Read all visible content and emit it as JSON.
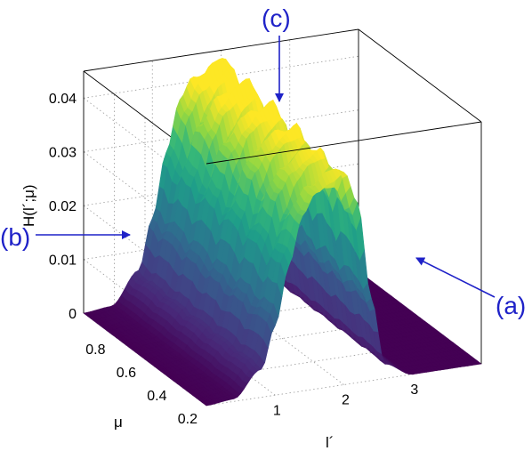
{
  "chart_data": {
    "type": "surface",
    "title": "",
    "xlabel": "l´",
    "ylabel": "μ",
    "zlabel": "H(l´;μ)",
    "xlim": [
      0,
      4
    ],
    "ylim": [
      0.2,
      1.0
    ],
    "zlim": [
      0,
      0.045
    ],
    "xticks": [
      "1",
      "2",
      "3"
    ],
    "yticks": [
      "0.2",
      "0.4",
      "0.6",
      "0.8"
    ],
    "zticks": [
      "0",
      "0.01",
      "0.02",
      "0.03",
      "0.04"
    ],
    "grid": true,
    "colormap": "viridis",
    "ridge_profile": {
      "x": [
        0.0,
        0.4,
        0.8,
        1.0,
        1.2,
        1.4,
        1.6,
        1.8,
        2.0,
        2.2,
        2.4,
        2.6,
        3.0,
        3.5,
        4.0
      ],
      "z": [
        0.0,
        0.0005,
        0.006,
        0.015,
        0.026,
        0.034,
        0.038,
        0.04,
        0.041,
        0.034,
        0.016,
        0.003,
        0.0,
        0.0,
        0.0
      ]
    }
  },
  "annotations": [
    {
      "label": "(a)",
      "color": "#1f22c8"
    },
    {
      "label": "(b)",
      "color": "#1f22c8"
    },
    {
      "label": "(c)",
      "color": "#1f22c8"
    }
  ]
}
